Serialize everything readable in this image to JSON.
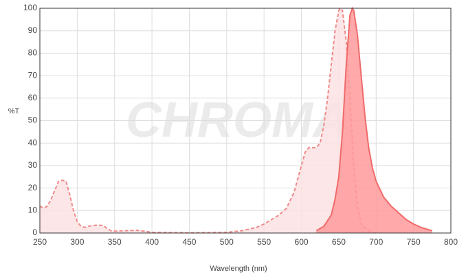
{
  "chart_data": {
    "type": "area",
    "watermark": "CHROMA",
    "x_label": "Wavelength (nm)",
    "y_label": "%T",
    "xlim": [
      250,
      800
    ],
    "xticks": [
      250,
      300,
      350,
      400,
      450,
      500,
      550,
      600,
      650,
      700,
      750,
      800
    ],
    "ylim": [
      0,
      100
    ],
    "yticks": [
      0,
      10,
      20,
      30,
      40,
      50,
      60,
      70,
      80,
      90,
      100
    ],
    "grid": true,
    "series": [
      {
        "color": "#f08a8a",
        "fill": "#fde2e3",
        "dashed": true,
        "x": [
          250,
          255,
          260,
          265,
          270,
          275,
          280,
          285,
          290,
          295,
          300,
          305,
          310,
          315,
          320,
          325,
          330,
          335,
          340,
          345,
          350,
          360,
          370,
          380,
          390,
          400,
          420,
          450,
          480,
          500,
          520,
          540,
          550,
          560,
          570,
          580,
          590,
          600,
          605,
          610,
          615,
          620,
          625,
          630,
          635,
          640,
          645,
          650,
          652,
          655,
          660,
          665,
          670,
          675,
          680,
          690,
          700
        ],
        "values": [
          12,
          11,
          12,
          15,
          19,
          23,
          23.5,
          23,
          17,
          10,
          5,
          3,
          2.5,
          3,
          3.3,
          3.5,
          3.5,
          3.3,
          2,
          1,
          0.8,
          1,
          1.1,
          1.2,
          0.8,
          0.3,
          0.2,
          0.1,
          0.2,
          0.3,
          1,
          2.5,
          4,
          6,
          8,
          11,
          18,
          30,
          36,
          38,
          38,
          38,
          40,
          48,
          60,
          75,
          90,
          99,
          100,
          99,
          85,
          60,
          30,
          12,
          4,
          1,
          0
        ]
      },
      {
        "color": "#f06a6a",
        "fill": "#ff9a9c",
        "dashed": false,
        "x": [
          620,
          630,
          640,
          645,
          650,
          655,
          660,
          665,
          668,
          670,
          675,
          680,
          685,
          690,
          695,
          700,
          710,
          720,
          730,
          740,
          750,
          760,
          770,
          775
        ],
        "values": [
          1,
          3,
          8,
          15,
          25,
          45,
          75,
          97,
          100,
          99,
          88,
          70,
          52,
          38,
          29,
          23,
          16,
          12,
          9,
          6,
          4,
          2.5,
          1.5,
          1
        ]
      }
    ]
  }
}
